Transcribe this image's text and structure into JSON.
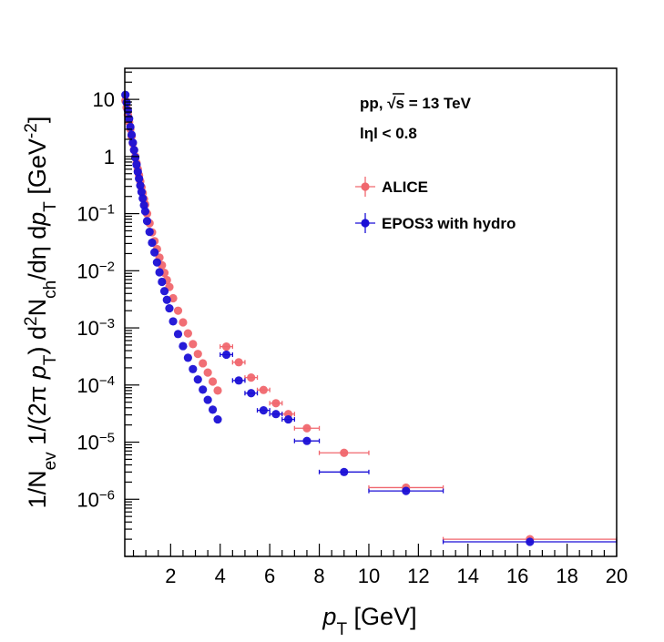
{
  "chart_data": {
    "type": "scatter",
    "log_y": true,
    "xlim": [
      0.15,
      20
    ],
    "ylim": [
      1e-07,
      35
    ],
    "x_ticks": [
      2,
      4,
      6,
      8,
      10,
      12,
      14,
      16,
      18,
      20
    ],
    "x_tick_labels": [
      "2",
      "4",
      "6",
      "8",
      "10",
      "12",
      "14",
      "16",
      "18",
      "20"
    ],
    "y_ticks": [
      10,
      1,
      0.1,
      0.01,
      0.001,
      0.0001,
      1e-05,
      1e-06
    ],
    "y_tick_labels": [
      {
        "base": "10",
        "exp": ""
      },
      {
        "base": "1",
        "exp": ""
      },
      {
        "base": "10",
        "exp": "−1"
      },
      {
        "base": "10",
        "exp": "−2"
      },
      {
        "base": "10",
        "exp": "−3"
      },
      {
        "base": "10",
        "exp": "−4"
      },
      {
        "base": "10",
        "exp": "−5"
      },
      {
        "base": "10",
        "exp": "−6"
      }
    ],
    "xlabel": {
      "italic": "p",
      "sub": "T",
      "rest": " [GeV]"
    },
    "ylabel": {
      "p1": "1/N",
      "s1": "ev",
      "p2": " 1/(2π ",
      "i1": "p",
      "s2": "T",
      "p3": ") d",
      "sup1": "2",
      "p4": "N",
      "s3": "ch",
      "p5": "/dη d",
      "i2": "p",
      "s4": "T",
      "p6": " [GeV",
      "sup2": "-2",
      "p7": "]"
    },
    "annotations": {
      "collision_prefix": "pp, ",
      "sqrt": "√s",
      "collision_suffix": " = 13 TeV",
      "eta_cut": "lηl < 0.8"
    },
    "series": [
      {
        "name": "ALICE",
        "color": "#f0676e",
        "x": [
          0.175,
          0.225,
          0.275,
          0.325,
          0.375,
          0.425,
          0.475,
          0.525,
          0.575,
          0.625,
          0.675,
          0.725,
          0.775,
          0.825,
          0.875,
          0.925,
          0.975,
          1.05,
          1.15,
          1.25,
          1.35,
          1.45,
          1.55,
          1.65,
          1.75,
          1.85,
          1.95,
          2.1,
          2.3,
          2.5,
          2.7,
          2.9,
          3.1,
          3.3,
          3.5,
          3.7,
          3.9,
          4.25,
          4.75,
          5.25,
          5.75,
          6.25,
          6.75,
          7.5,
          9.0,
          11.5,
          16.5
        ],
        "y": [
          9.5,
          7.2,
          5.4,
          4.0,
          3.0,
          2.25,
          1.7,
          1.3,
          1.0,
          0.77,
          0.6,
          0.47,
          0.37,
          0.29,
          0.23,
          0.18,
          0.145,
          0.1,
          0.068,
          0.047,
          0.033,
          0.024,
          0.017,
          0.0125,
          0.0092,
          0.0069,
          0.0052,
          0.0033,
          0.002,
          0.00125,
          0.0008,
          0.00052,
          0.00035,
          0.00024,
          0.000165,
          0.000115,
          8e-05,
          0.00047,
          0.00025,
          0.000135,
          8.2e-05,
          4.8e-05,
          3.1e-05,
          1.75e-05,
          6.5e-06,
          1.6e-06,
          2e-07
        ],
        "x_err": [
          0.025,
          0.025,
          0.025,
          0.025,
          0.025,
          0.025,
          0.025,
          0.025,
          0.025,
          0.025,
          0.025,
          0.025,
          0.025,
          0.025,
          0.025,
          0.025,
          0.025,
          0.05,
          0.05,
          0.05,
          0.05,
          0.05,
          0.05,
          0.05,
          0.05,
          0.05,
          0.05,
          0.1,
          0.1,
          0.1,
          0.1,
          0.1,
          0.1,
          0.1,
          0.1,
          0.1,
          0.1,
          0.25,
          0.25,
          0.25,
          0.25,
          0.25,
          0.25,
          0.5,
          1.0,
          1.5,
          3.5
        ]
      },
      {
        "name": "EPOS3 with hydro",
        "color": "#1a0fd6",
        "x": [
          0.175,
          0.225,
          0.275,
          0.325,
          0.375,
          0.425,
          0.475,
          0.525,
          0.575,
          0.625,
          0.675,
          0.725,
          0.775,
          0.825,
          0.875,
          0.925,
          0.975,
          1.05,
          1.15,
          1.25,
          1.35,
          1.45,
          1.55,
          1.65,
          1.75,
          1.85,
          1.95,
          2.1,
          2.3,
          2.5,
          2.7,
          2.9,
          3.1,
          3.3,
          3.5,
          3.7,
          3.9,
          4.25,
          4.75,
          5.25,
          5.75,
          6.25,
          6.75,
          7.5,
          9.0,
          11.5,
          16.5
        ],
        "y": [
          12.0,
          8.8,
          6.4,
          4.6,
          3.3,
          2.4,
          1.75,
          1.3,
          0.96,
          0.72,
          0.54,
          0.41,
          0.31,
          0.24,
          0.185,
          0.14,
          0.11,
          0.074,
          0.048,
          0.031,
          0.021,
          0.014,
          0.0094,
          0.0064,
          0.0044,
          0.0031,
          0.0022,
          0.0013,
          0.00078,
          0.00048,
          0.0003,
          0.00019,
          0.000125,
          8.3e-05,
          5.5e-05,
          3.7e-05,
          2.5e-05,
          0.00034,
          0.00012,
          7.2e-05,
          3.6e-05,
          3.1e-05,
          2.5e-05,
          1.05e-05,
          3e-06,
          1.4e-06,
          1.8e-07
        ],
        "x_err": [
          0.025,
          0.025,
          0.025,
          0.025,
          0.025,
          0.025,
          0.025,
          0.025,
          0.025,
          0.025,
          0.025,
          0.025,
          0.025,
          0.025,
          0.025,
          0.025,
          0.025,
          0.05,
          0.05,
          0.05,
          0.05,
          0.05,
          0.05,
          0.05,
          0.05,
          0.05,
          0.05,
          0.1,
          0.1,
          0.1,
          0.1,
          0.1,
          0.1,
          0.1,
          0.1,
          0.1,
          0.1,
          0.25,
          0.25,
          0.25,
          0.25,
          0.25,
          0.25,
          0.5,
          1.0,
          1.5,
          3.5
        ]
      }
    ],
    "legend": [
      {
        "label": "ALICE",
        "color": "#f0676e"
      },
      {
        "label": "EPOS3 with hydro",
        "color": "#1a0fd6"
      }
    ],
    "legend_placement": "top-right"
  }
}
